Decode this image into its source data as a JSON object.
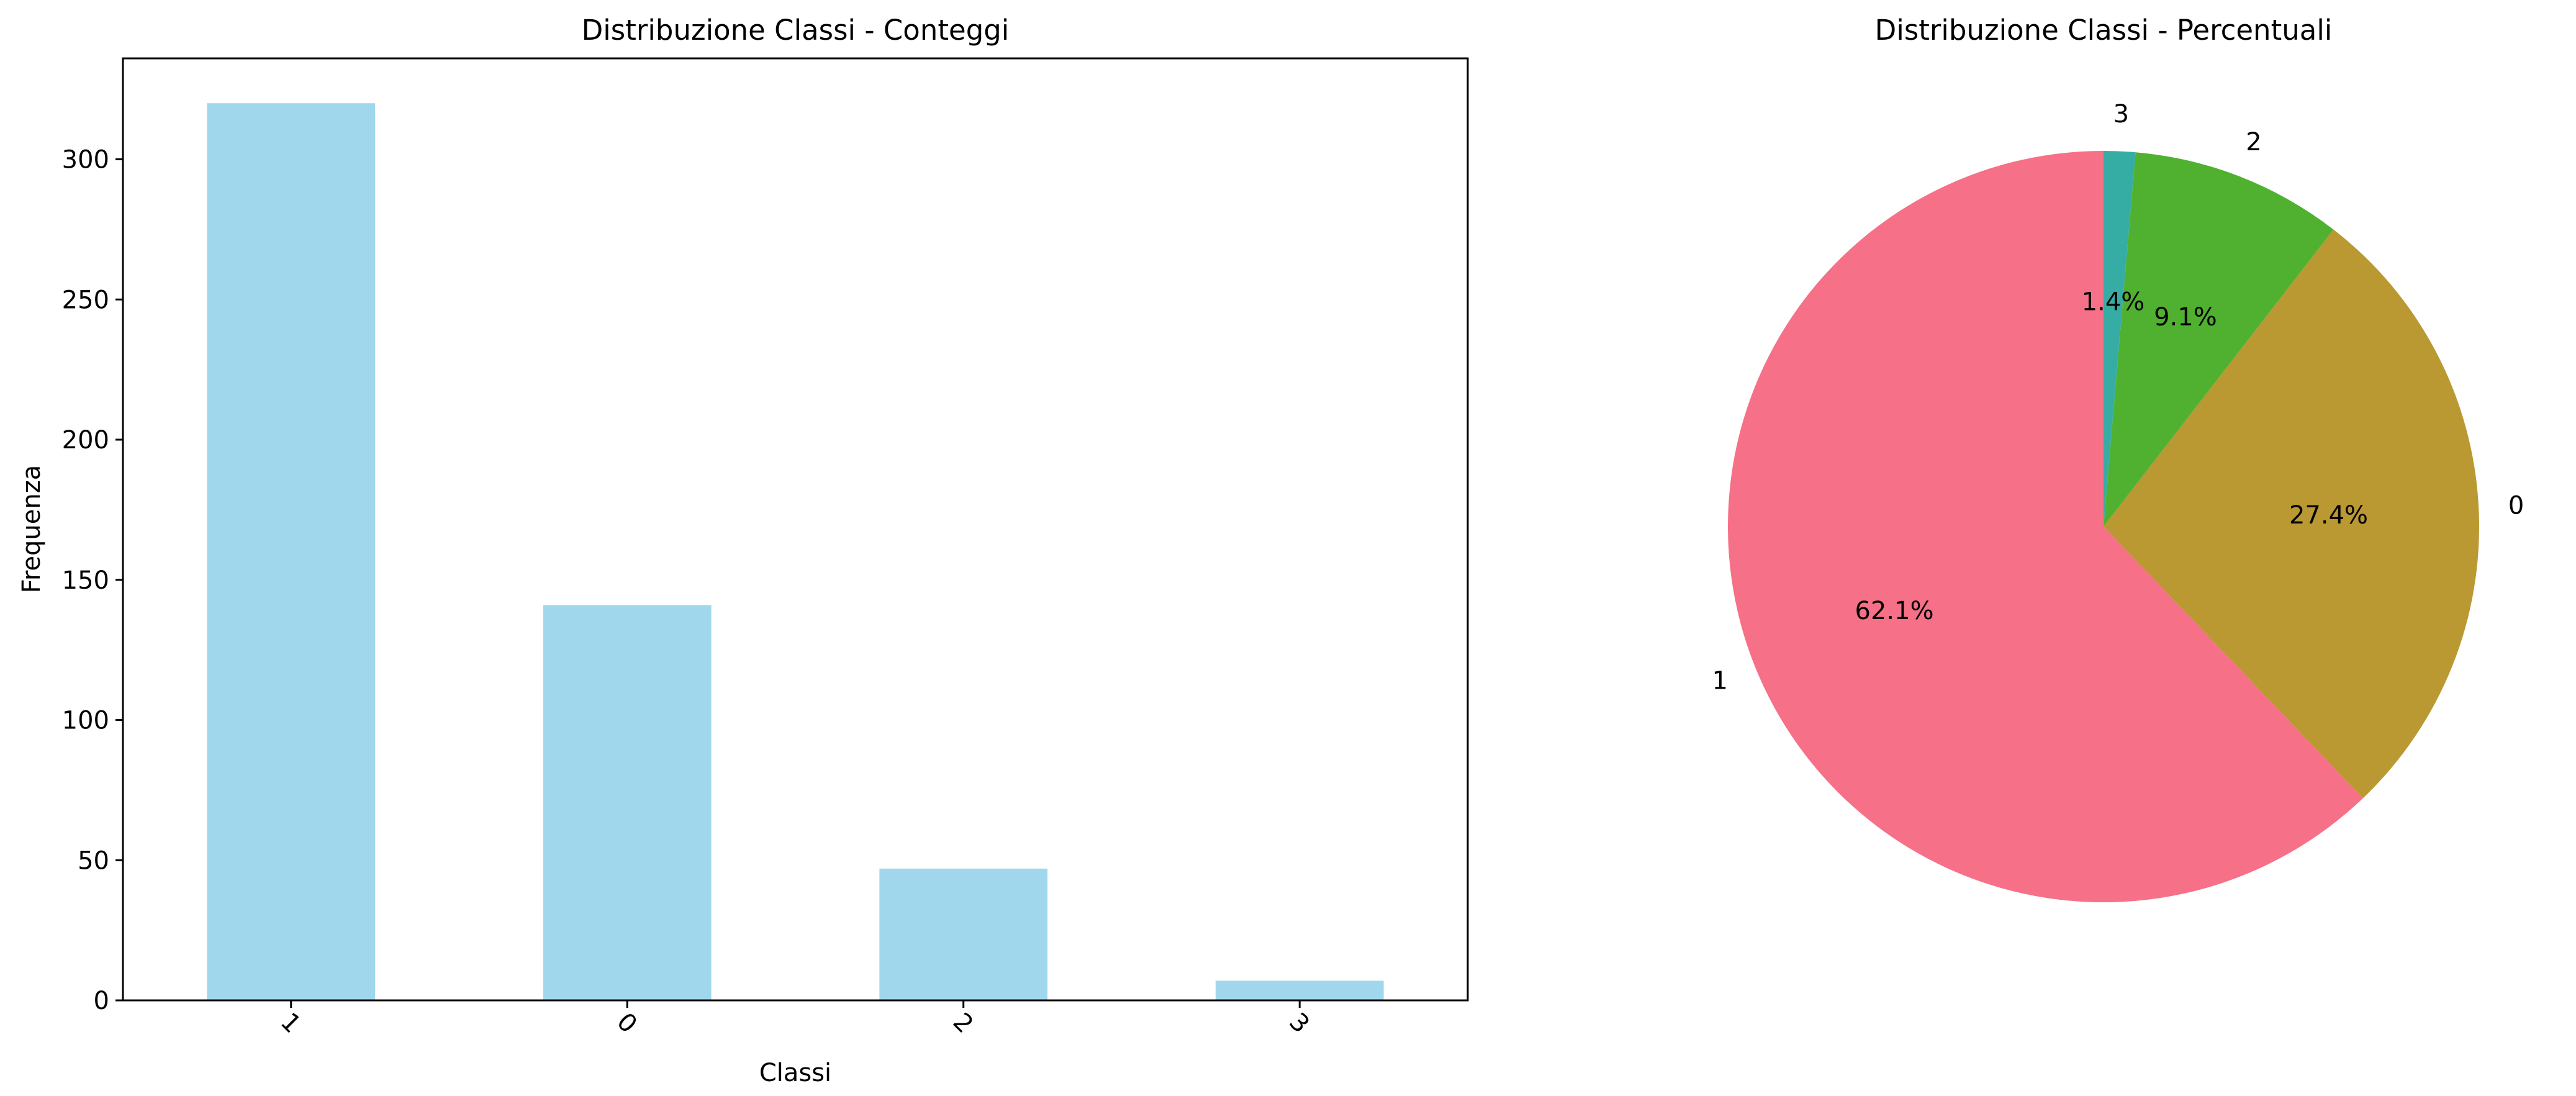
{
  "chart_data": [
    {
      "type": "bar",
      "title": "Distribuzione Classi - Conteggi",
      "xlabel": "Classi",
      "ylabel": "Frequenza",
      "categories": [
        "1",
        "0",
        "2",
        "3"
      ],
      "values": [
        320,
        141,
        47,
        7
      ],
      "ylim": [
        0,
        336
      ],
      "yticks": [
        "0",
        "50",
        "100",
        "150",
        "200",
        "250",
        "300"
      ],
      "grid": false,
      "legend": "none",
      "color": "#a0d7ed"
    },
    {
      "type": "pie",
      "title": "Distribuzione Classi - Percentuali",
      "labels": [
        "1",
        "0",
        "2",
        "3"
      ],
      "values": [
        320,
        141,
        47,
        7
      ],
      "percent_labels": [
        "62.1%",
        "27.4%",
        "9.1%",
        "1.4%"
      ],
      "colors": [
        "#f67088",
        "#ba9832",
        "#50b131",
        "#36ada4"
      ],
      "start_angle": 90,
      "legend": "none"
    }
  ]
}
